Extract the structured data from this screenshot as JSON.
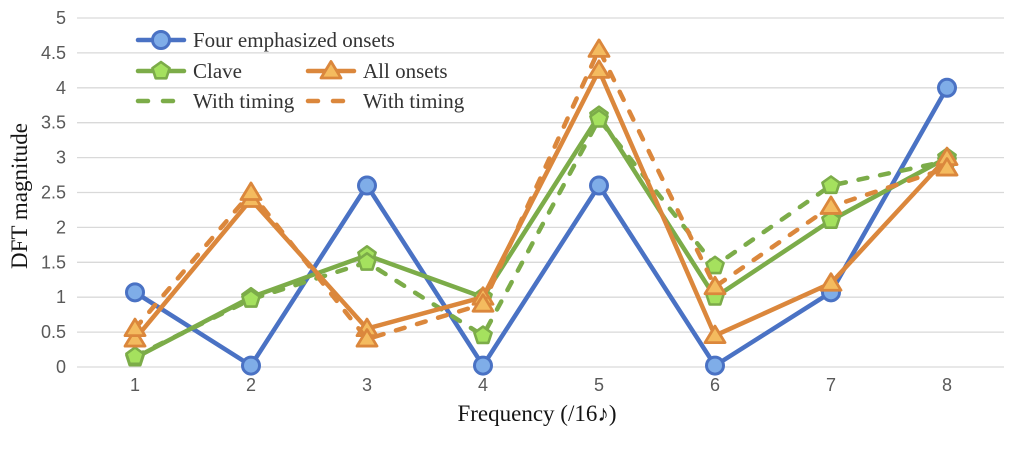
{
  "chart_data": {
    "type": "line",
    "title": "",
    "xlabel": "Frequency (/16♪)",
    "ylabel": "DFT magnitude",
    "x": [
      1,
      2,
      3,
      4,
      5,
      6,
      7,
      8
    ],
    "x_tick_labels": [
      "1",
      "2",
      "3",
      "4",
      "5",
      "6",
      "7",
      "8"
    ],
    "y_ticks": [
      0,
      0.5,
      1,
      1.5,
      2,
      2.5,
      3,
      3.5,
      4,
      4.5,
      5
    ],
    "y_tick_labels": [
      "0",
      "0.5",
      "1",
      "1.5",
      "2",
      "2.5",
      "3",
      "3.5",
      "4",
      "4.5",
      "5"
    ],
    "ylim": [
      0,
      5
    ],
    "grid": "horizontal-only",
    "legend_position": "inside-top-left",
    "series": [
      {
        "name": "Four emphasized onsets",
        "style": "solid",
        "marker": "circle",
        "line_color": "#4A72C4",
        "marker_fill": "#7FADE8",
        "values": [
          1.07,
          0.02,
          2.6,
          0.02,
          2.6,
          0.02,
          1.07,
          4.0
        ]
      },
      {
        "name": "Clave",
        "style": "solid",
        "marker": "pentagon",
        "line_color": "#7CAC49",
        "marker_fill": "#A5E15E",
        "values": [
          0.13,
          1.0,
          1.6,
          1.0,
          3.6,
          1.0,
          2.1,
          3.0
        ]
      },
      {
        "name": "With timing",
        "style": "dashed",
        "marker": "pentagon",
        "line_color": "#7CAC49",
        "marker_fill": "#A5E15E",
        "values": [
          0.15,
          0.97,
          1.5,
          0.45,
          3.55,
          1.45,
          2.6,
          2.95
        ]
      },
      {
        "name": "All onsets",
        "style": "solid",
        "marker": "triangle",
        "line_color": "#DB873C",
        "marker_fill": "#F4BB5F",
        "values": [
          0.4,
          2.4,
          0.55,
          1.0,
          4.25,
          0.45,
          1.2,
          3.0
        ]
      },
      {
        "name": "With timing",
        "style": "dashed",
        "marker": "triangle",
        "line_color": "#DB873C",
        "marker_fill": "#F4BB5F",
        "values": [
          0.55,
          2.5,
          0.4,
          0.9,
          4.55,
          1.15,
          2.3,
          2.85
        ]
      }
    ],
    "colors": {
      "background": "#FFFFFF",
      "gridline": "#D9D9D9",
      "tick_text": "#595959",
      "axis_title_text": "#141414",
      "legend_text": "#333333"
    }
  }
}
